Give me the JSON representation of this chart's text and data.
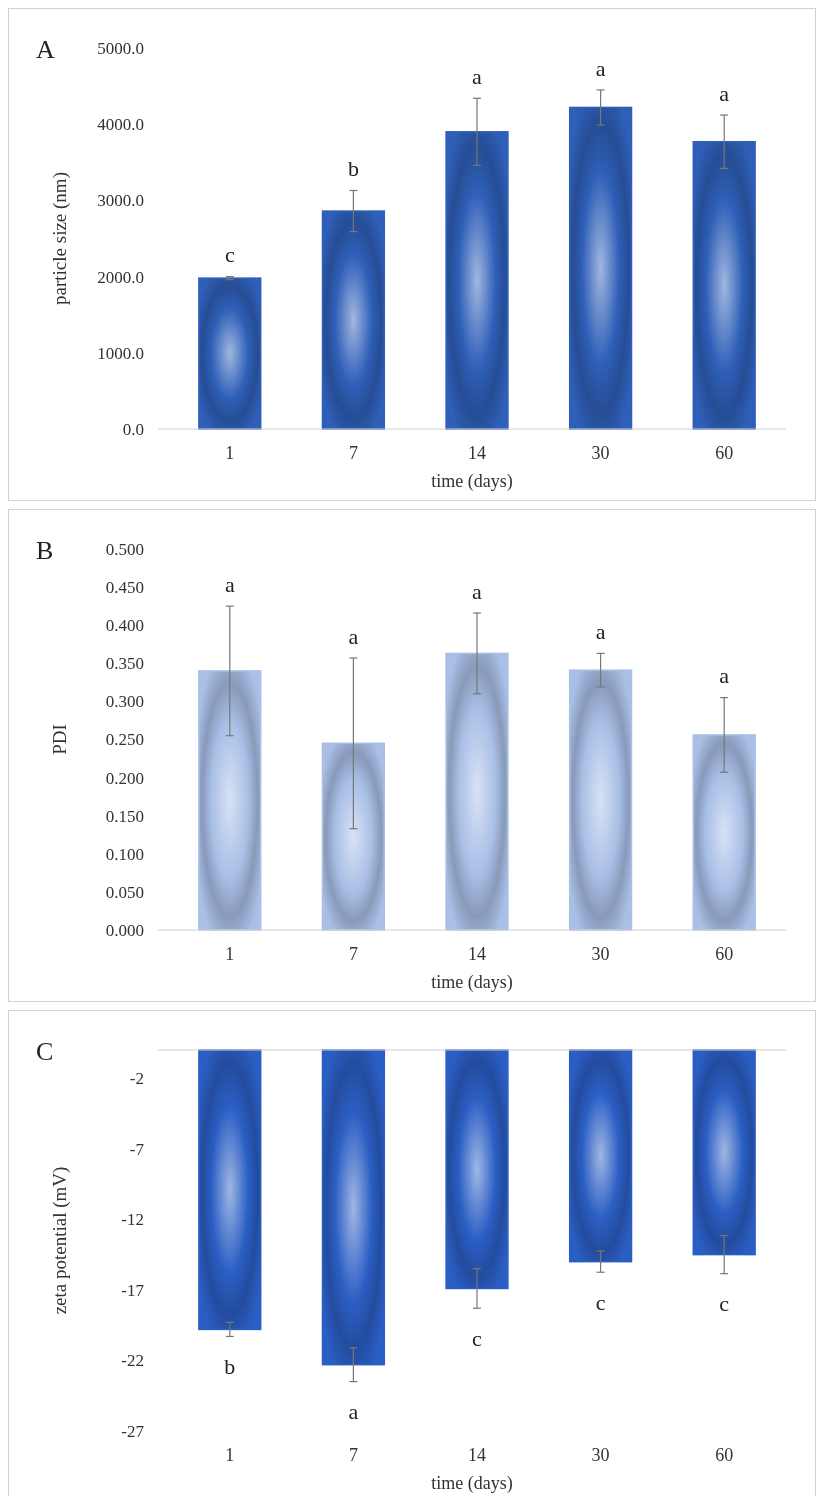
{
  "chart_data": [
    {
      "type": "bar",
      "title": "A",
      "xlabel": "time (days)",
      "ylabel": "particle size (nm)",
      "categories": [
        "1",
        "7",
        "14",
        "30",
        "60"
      ],
      "values": [
        1980,
        2860,
        3900,
        4220,
        3770
      ],
      "errors": [
        20,
        270,
        440,
        230,
        350
      ],
      "color": "#2f5fb8",
      "ylim": [
        0,
        5000
      ],
      "yticks": [
        {
          "value": 0,
          "label": "0.0"
        },
        {
          "value": 1000,
          "label": "1000.0"
        },
        {
          "value": 2000,
          "label": "2000.0"
        },
        {
          "value": 3000,
          "label": "3000.0"
        },
        {
          "value": 4000,
          "label": "4000.0"
        },
        {
          "value": 5000,
          "label": "5000.0"
        }
      ],
      "annotations": [
        "c",
        "b",
        "a",
        "a",
        "a"
      ]
    },
    {
      "type": "bar",
      "title": "B",
      "xlabel": "time (days)",
      "ylabel": "PDI",
      "categories": [
        "1",
        "7",
        "14",
        "30",
        "60"
      ],
      "values": [
        0.34,
        0.245,
        0.363,
        0.341,
        0.256
      ],
      "errors": [
        0.085,
        0.112,
        0.053,
        0.022,
        0.049
      ],
      "color": "#a9bfe6",
      "ylim": [
        0,
        0.5
      ],
      "yticks": [
        {
          "value": 0,
          "label": "0.000"
        },
        {
          "value": 0.05,
          "label": "0.050"
        },
        {
          "value": 0.1,
          "label": "0.100"
        },
        {
          "value": 0.15,
          "label": "0.150"
        },
        {
          "value": 0.2,
          "label": "0.200"
        },
        {
          "value": 0.25,
          "label": "0.250"
        },
        {
          "value": 0.3,
          "label": "0.300"
        },
        {
          "value": 0.35,
          "label": "0.350"
        },
        {
          "value": 0.4,
          "label": "0.400"
        },
        {
          "value": 0.45,
          "label": "0.450"
        },
        {
          "value": 0.5,
          "label": "0.500"
        }
      ],
      "annotations": [
        "a",
        "a",
        "a",
        "a",
        "a"
      ]
    },
    {
      "type": "bar",
      "title": "C",
      "xlabel": "time (days)",
      "ylabel": "zeta potential (mV)",
      "categories": [
        "1",
        "7",
        "14",
        "30",
        "60"
      ],
      "values": [
        -19.8,
        -22.3,
        -16.9,
        -15.0,
        -14.5
      ],
      "errors": [
        0.5,
        1.2,
        1.4,
        0.75,
        1.35
      ],
      "color": "#2b5ec4",
      "ylim": [
        -27,
        0
      ],
      "yticks": [
        -27,
        -22,
        -17,
        -12,
        -7,
        -2
      ],
      "annotations": [
        "b",
        "a",
        "c",
        "c",
        "c"
      ]
    }
  ]
}
